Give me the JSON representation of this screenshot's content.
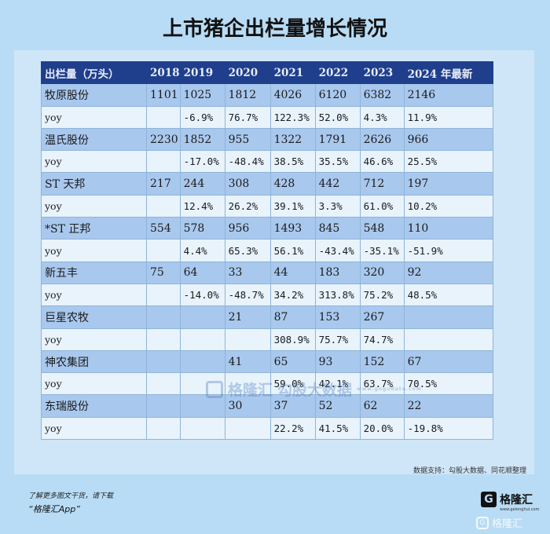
{
  "title": "上市猪企出栏量增长情况",
  "table": {
    "headers": [
      "出栏量（万头）",
      "2018",
      "2019",
      "2020",
      "2021",
      "2022",
      "2023",
      "2024 年最新"
    ],
    "rows": [
      {
        "type": "company",
        "cells": [
          "牧原股份",
          "1101",
          "1025",
          "1812",
          "4026",
          "6120",
          "6382",
          "2146"
        ]
      },
      {
        "type": "yoy",
        "cells": [
          "yoy",
          "",
          "-6.9%",
          "76.7%",
          "122.3%",
          "52.0%",
          "4.3%",
          "11.9%"
        ]
      },
      {
        "type": "company",
        "cells": [
          "温氏股份",
          "2230",
          "1852",
          "955",
          "1322",
          "1791",
          "2626",
          "966"
        ]
      },
      {
        "type": "yoy",
        "cells": [
          "yoy",
          "",
          "-17.0%",
          "-48.4%",
          "38.5%",
          "35.5%",
          "46.6%",
          "25.5%"
        ]
      },
      {
        "type": "company",
        "cells": [
          "ST 天邦",
          "217",
          "244",
          "308",
          "428",
          "442",
          "712",
          "197"
        ]
      },
      {
        "type": "yoy",
        "cells": [
          "yoy",
          "",
          "12.4%",
          "26.2%",
          "39.1%",
          "3.3%",
          "61.0%",
          "10.2%"
        ]
      },
      {
        "type": "company",
        "cells": [
          "*ST 正邦",
          "554",
          "578",
          "956",
          "1493",
          "845",
          "548",
          "110"
        ]
      },
      {
        "type": "yoy",
        "cells": [
          "yoy",
          "",
          "4.4%",
          "65.3%",
          "56.1%",
          "-43.4%",
          "-35.1%",
          "-51.9%"
        ]
      },
      {
        "type": "company",
        "cells": [
          "新五丰",
          "75",
          "64",
          "33",
          "44",
          "183",
          "320",
          "92"
        ]
      },
      {
        "type": "yoy",
        "cells": [
          "yoy",
          "",
          "-14.0%",
          "-48.7%",
          "34.2%",
          "313.8%",
          "75.2%",
          "48.5%"
        ]
      },
      {
        "type": "company",
        "cells": [
          "巨星农牧",
          "",
          "",
          "21",
          "87",
          "153",
          "267",
          ""
        ]
      },
      {
        "type": "yoy",
        "cells": [
          "yoy",
          "",
          "",
          "",
          "308.9%",
          "75.7%",
          "74.7%",
          ""
        ]
      },
      {
        "type": "company",
        "cells": [
          "神农集团",
          "",
          "",
          "41",
          "65",
          "93",
          "152",
          "67"
        ]
      },
      {
        "type": "yoy",
        "cells": [
          "yoy",
          "",
          "",
          "",
          "59.0%",
          "42.1%",
          "63.7%",
          "70.5%"
        ]
      },
      {
        "type": "company",
        "cells": [
          "东瑞股份",
          "",
          "",
          "30",
          "37",
          "52",
          "62",
          "22"
        ]
      },
      {
        "type": "yoy",
        "cells": [
          "yoy",
          "",
          "",
          "",
          "22.2%",
          "41.5%",
          "20.0%",
          "-19.8%"
        ]
      }
    ]
  },
  "source": "数据支持：勾股大数据、同花顺整理",
  "watermark": {
    "brand": "格隆汇",
    "text": "勾股大数据",
    "sub": "www.gogudata.com"
  },
  "footer": {
    "promo_line1": "了解更多图文干货，请下载",
    "promo_line2": "“格隆汇App”",
    "brand": "格隆汇",
    "brand_sub": "www.gelonghui.com",
    "corner_brand": "格隆汇"
  },
  "colors": {
    "header_bg": "#1f3f8c",
    "company_row_bg": "#a9c8ee",
    "yoy_row_bg": "#e8f3fc",
    "page_bg": "#b8dcf5"
  }
}
